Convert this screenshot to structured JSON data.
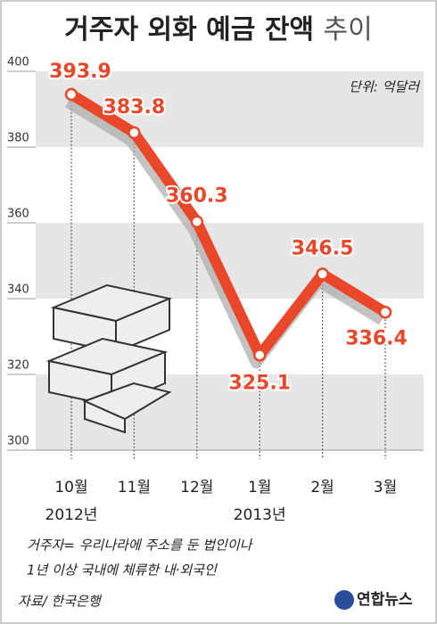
{
  "chart_data": {
    "type": "line",
    "title": "거주자 외화 예금 잔액",
    "title_suffix": "추이",
    "unit": "단위: 억달러",
    "categories": [
      "10월",
      "11월",
      "12월",
      "1월",
      "2월",
      "3월"
    ],
    "year_labels": [
      "2012년",
      "2013년"
    ],
    "values": [
      393.9,
      383.8,
      360.3,
      325.1,
      346.5,
      336.4
    ],
    "value_labels": [
      "393.9",
      "383.8",
      "360.3",
      "325.1",
      "346.5",
      "336.4"
    ],
    "color": "#e8472a",
    "ylim": [
      300,
      400
    ],
    "yticks": [
      300,
      320,
      340,
      360,
      380,
      400
    ]
  },
  "notes": [
    "거주자= 우리나라에 주소를 둔 법인이나",
    "1년 이상 국내에 체류한 내·외국인"
  ],
  "source": "자료/ 한국은행",
  "logo": "연합뉴스"
}
